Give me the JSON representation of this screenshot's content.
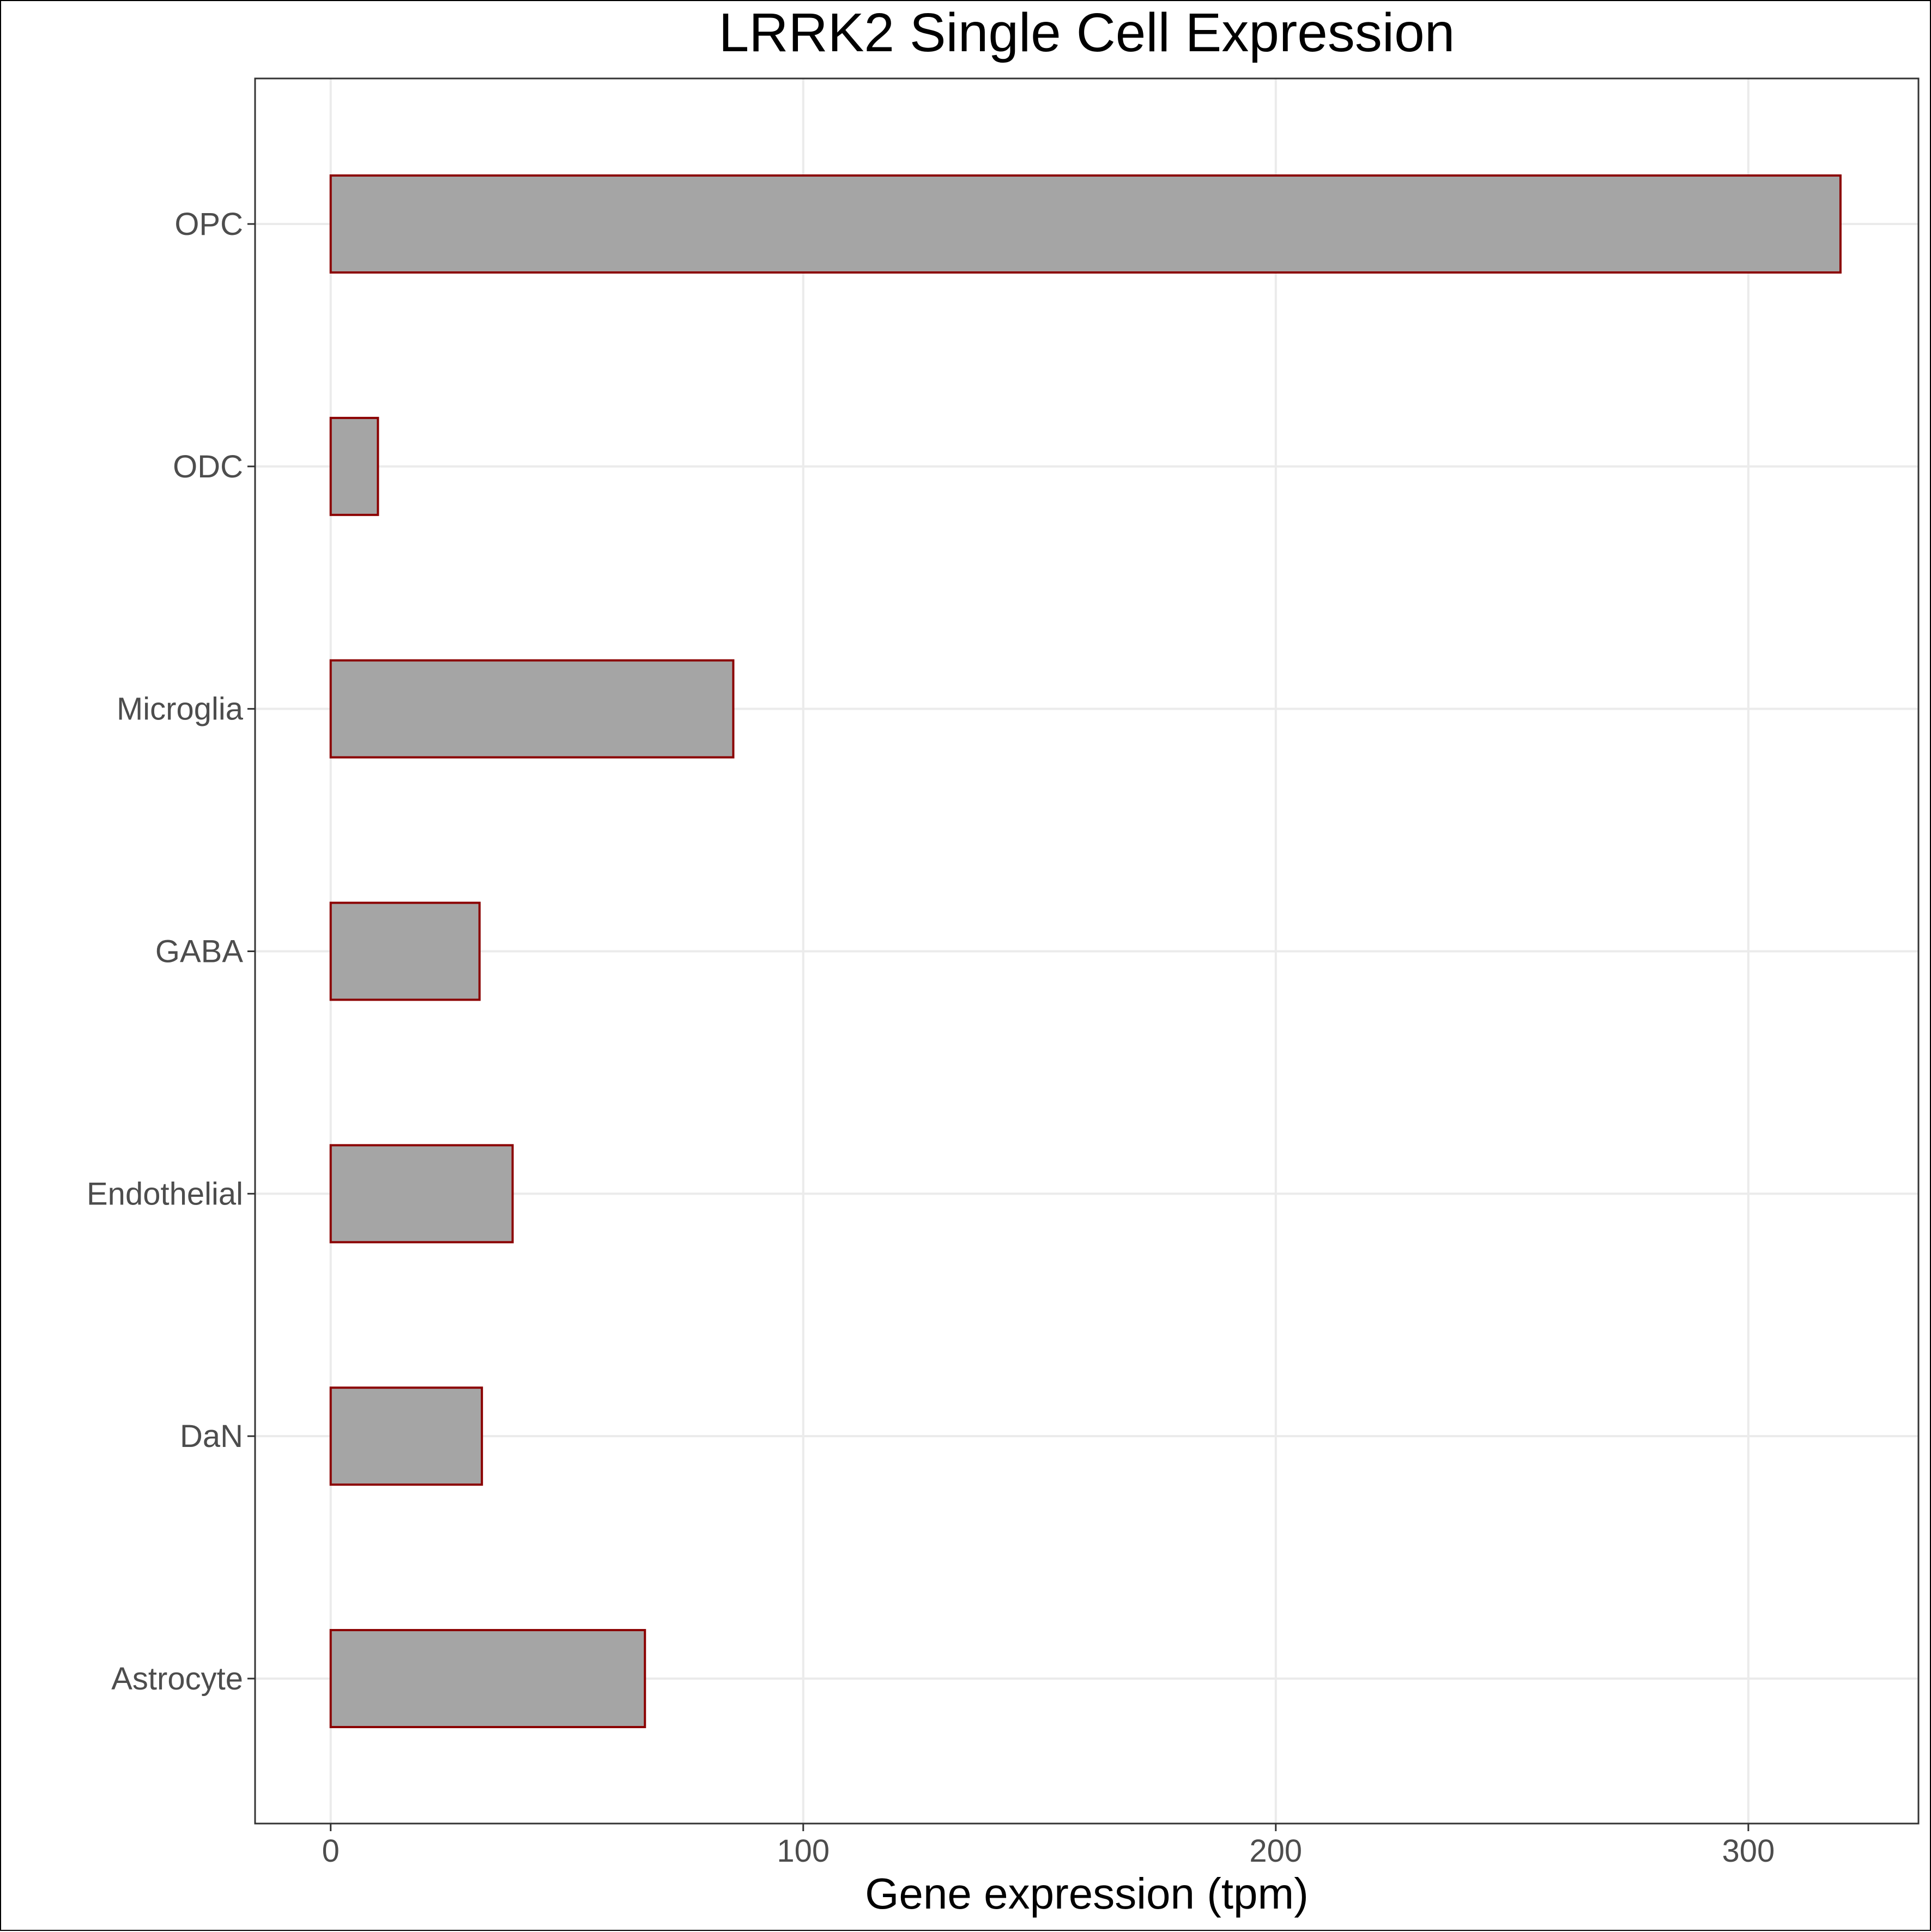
{
  "chart_data": {
    "type": "bar",
    "orientation": "horizontal",
    "title": "LRRK2 Single Cell Expression",
    "xlabel": "Gene expression (tpm)",
    "ylabel": "",
    "categories": [
      "Astrocyte",
      "DaN",
      "Endothelial",
      "GABA",
      "Microglia",
      "ODC",
      "OPC"
    ],
    "values": [
      66.5,
      32.0,
      38.5,
      31.5,
      85.2,
      10.0,
      319.5
    ],
    "xlim": [
      -16,
      336
    ],
    "xticks": [
      0,
      100,
      200,
      300
    ],
    "grid": true,
    "legend": "none",
    "colors": {
      "bar_fill": "#a5a5a5",
      "bar_stroke": "#8b0000",
      "grid": "#ebebeb",
      "panel_border": "#333333"
    }
  }
}
